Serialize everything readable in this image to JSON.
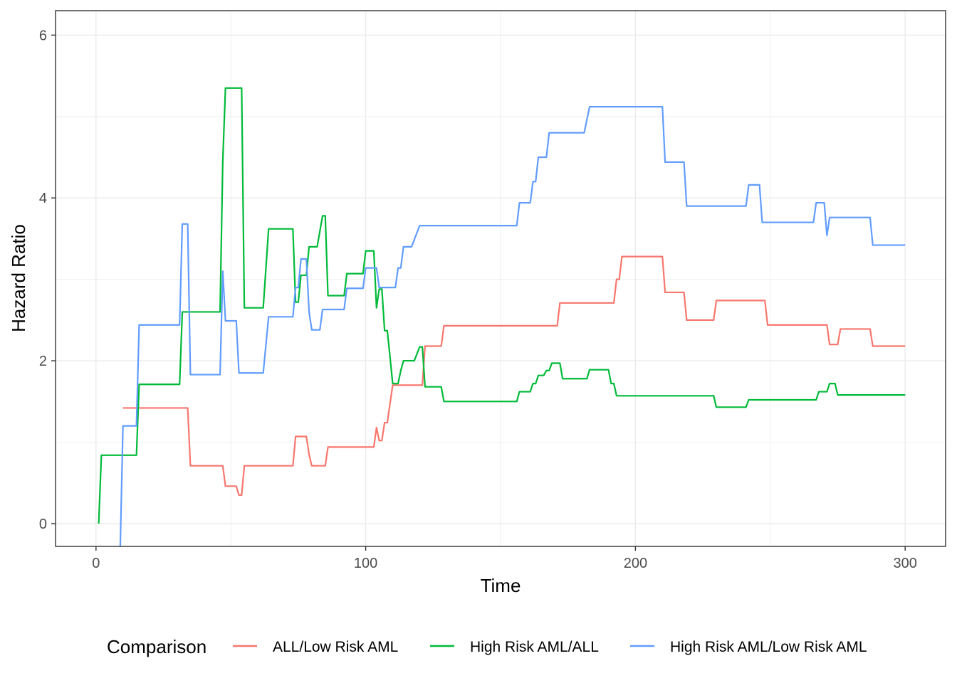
{
  "chart_data": {
    "type": "line",
    "title": "",
    "xlabel": "Time",
    "ylabel": "Hazard Ratio",
    "xlim": [
      -15,
      315
    ],
    "ylim": [
      -0.28,
      6.3
    ],
    "x_ticks": [
      0,
      100,
      200,
      300
    ],
    "x_tick_labels": [
      "0",
      "100",
      "200",
      "300"
    ],
    "y_ticks": [
      0,
      2,
      4,
      6
    ],
    "y_tick_labels": [
      "0",
      "2",
      "4",
      "6"
    ],
    "x_minor": [
      50,
      150,
      250
    ],
    "y_minor": [
      1,
      3,
      5
    ],
    "grid": true,
    "legend": {
      "title": "Comparison",
      "position": "bottom"
    },
    "series": [
      {
        "name": "ALL/Low Risk AML",
        "color": "#F8766D",
        "points": [
          [
            10,
            1.42
          ],
          [
            34,
            1.42
          ],
          [
            35,
            0.71
          ],
          [
            47,
            0.71
          ],
          [
            48,
            0.46
          ],
          [
            52,
            0.46
          ],
          [
            53,
            0.35
          ],
          [
            54,
            0.35
          ],
          [
            55,
            0.71
          ],
          [
            73,
            0.71
          ],
          [
            74,
            1.07
          ],
          [
            78,
            1.07
          ],
          [
            79,
            0.85
          ],
          [
            80,
            0.71
          ],
          [
            85,
            0.71
          ],
          [
            86,
            0.94
          ],
          [
            103,
            0.94
          ],
          [
            104,
            1.18
          ],
          [
            105,
            1.02
          ],
          [
            106,
            1.02
          ],
          [
            107,
            1.24
          ],
          [
            108,
            1.24
          ],
          [
            110,
            1.7
          ],
          [
            121,
            1.7
          ],
          [
            122,
            2.18
          ],
          [
            128,
            2.18
          ],
          [
            129,
            2.43
          ],
          [
            171,
            2.43
          ],
          [
            172,
            2.71
          ],
          [
            192,
            2.71
          ],
          [
            193,
            3.0
          ],
          [
            194,
            3.0
          ],
          [
            195,
            3.28
          ],
          [
            210,
            3.28
          ],
          [
            211,
            2.84
          ],
          [
            218,
            2.84
          ],
          [
            219,
            2.5
          ],
          [
            229,
            2.5
          ],
          [
            230,
            2.74
          ],
          [
            248,
            2.74
          ],
          [
            249,
            2.44
          ],
          [
            271,
            2.44
          ],
          [
            272,
            2.2
          ],
          [
            275,
            2.2
          ],
          [
            276,
            2.39
          ],
          [
            287,
            2.39
          ],
          [
            288,
            2.18
          ],
          [
            300,
            2.18
          ]
        ]
      },
      {
        "name": "High Risk AML/ALL",
        "color": "#00BA38",
        "points": [
          [
            1,
            0.0
          ],
          [
            2,
            0.84
          ],
          [
            15,
            0.84
          ],
          [
            16,
            1.71
          ],
          [
            31,
            1.71
          ],
          [
            32,
            2.6
          ],
          [
            46,
            2.6
          ],
          [
            47,
            4.45
          ],
          [
            48,
            5.35
          ],
          [
            54,
            5.35
          ],
          [
            55,
            2.65
          ],
          [
            62,
            2.65
          ],
          [
            64,
            3.62
          ],
          [
            73,
            3.62
          ],
          [
            74,
            2.72
          ],
          [
            75,
            2.72
          ],
          [
            76,
            3.05
          ],
          [
            78,
            3.05
          ],
          [
            79,
            3.4
          ],
          [
            82,
            3.4
          ],
          [
            84,
            3.78
          ],
          [
            85,
            3.78
          ],
          [
            86,
            2.8
          ],
          [
            92,
            2.8
          ],
          [
            93,
            3.07
          ],
          [
            99,
            3.07
          ],
          [
            100,
            3.35
          ],
          [
            103,
            3.35
          ],
          [
            104,
            2.65
          ],
          [
            105,
            2.88
          ],
          [
            106,
            2.88
          ],
          [
            107,
            2.37
          ],
          [
            108,
            2.37
          ],
          [
            109,
            2.05
          ],
          [
            110,
            1.72
          ],
          [
            112,
            1.72
          ],
          [
            113,
            1.88
          ],
          [
            114,
            2.0
          ],
          [
            118,
            2.0
          ],
          [
            120,
            2.17
          ],
          [
            121,
            2.17
          ],
          [
            122,
            1.68
          ],
          [
            128,
            1.68
          ],
          [
            129,
            1.5
          ],
          [
            156,
            1.5
          ],
          [
            157,
            1.62
          ],
          [
            161,
            1.62
          ],
          [
            162,
            1.72
          ],
          [
            163,
            1.72
          ],
          [
            164,
            1.82
          ],
          [
            166,
            1.82
          ],
          [
            167,
            1.88
          ],
          [
            168,
            1.88
          ],
          [
            169,
            1.97
          ],
          [
            172,
            1.97
          ],
          [
            173,
            1.78
          ],
          [
            182,
            1.78
          ],
          [
            183,
            1.89
          ],
          [
            190,
            1.89
          ],
          [
            191,
            1.72
          ],
          [
            192,
            1.72
          ],
          [
            193,
            1.57
          ],
          [
            229,
            1.57
          ],
          [
            230,
            1.43
          ],
          [
            241,
            1.43
          ],
          [
            242,
            1.52
          ],
          [
            267,
            1.52
          ],
          [
            268,
            1.62
          ],
          [
            271,
            1.62
          ],
          [
            272,
            1.72
          ],
          [
            274,
            1.72
          ],
          [
            275,
            1.58
          ],
          [
            300,
            1.58
          ]
        ]
      },
      {
        "name": "High Risk AML/Low Risk AML",
        "color": "#619CFF",
        "points": [
          [
            9,
            -0.28
          ],
          [
            10,
            1.2
          ],
          [
            15,
            1.2
          ],
          [
            16,
            2.44
          ],
          [
            31,
            2.44
          ],
          [
            32,
            3.68
          ],
          [
            34,
            3.68
          ],
          [
            35,
            1.83
          ],
          [
            46,
            1.83
          ],
          [
            47,
            3.1
          ],
          [
            48,
            2.49
          ],
          [
            52,
            2.49
          ],
          [
            53,
            1.85
          ],
          [
            62,
            1.85
          ],
          [
            64,
            2.54
          ],
          [
            73,
            2.54
          ],
          [
            74,
            2.9
          ],
          [
            75,
            2.9
          ],
          [
            76,
            3.25
          ],
          [
            78,
            3.25
          ],
          [
            79,
            2.6
          ],
          [
            80,
            2.38
          ],
          [
            83,
            2.38
          ],
          [
            84,
            2.63
          ],
          [
            92,
            2.63
          ],
          [
            93,
            2.89
          ],
          [
            99,
            2.89
          ],
          [
            100,
            3.14
          ],
          [
            103,
            3.14
          ],
          [
            104,
            3.14
          ],
          [
            105,
            2.9
          ],
          [
            111,
            2.9
          ],
          [
            112,
            3.14
          ],
          [
            113,
            3.14
          ],
          [
            114,
            3.4
          ],
          [
            117,
            3.4
          ],
          [
            120,
            3.66
          ],
          [
            156,
            3.66
          ],
          [
            157,
            3.94
          ],
          [
            161,
            3.94
          ],
          [
            162,
            4.2
          ],
          [
            163,
            4.2
          ],
          [
            164,
            4.5
          ],
          [
            166,
            4.5
          ],
          [
            167,
            4.5
          ],
          [
            168,
            4.8
          ],
          [
            181,
            4.8
          ],
          [
            183,
            5.12
          ],
          [
            210,
            5.12
          ],
          [
            211,
            4.44
          ],
          [
            218,
            4.44
          ],
          [
            219,
            3.9
          ],
          [
            241,
            3.9
          ],
          [
            242,
            4.16
          ],
          [
            246,
            4.16
          ],
          [
            247,
            3.7
          ],
          [
            266,
            3.7
          ],
          [
            267,
            3.94
          ],
          [
            270,
            3.94
          ],
          [
            271,
            3.54
          ],
          [
            272,
            3.76
          ],
          [
            287,
            3.76
          ],
          [
            288,
            3.42
          ],
          [
            300,
            3.42
          ]
        ]
      }
    ]
  }
}
